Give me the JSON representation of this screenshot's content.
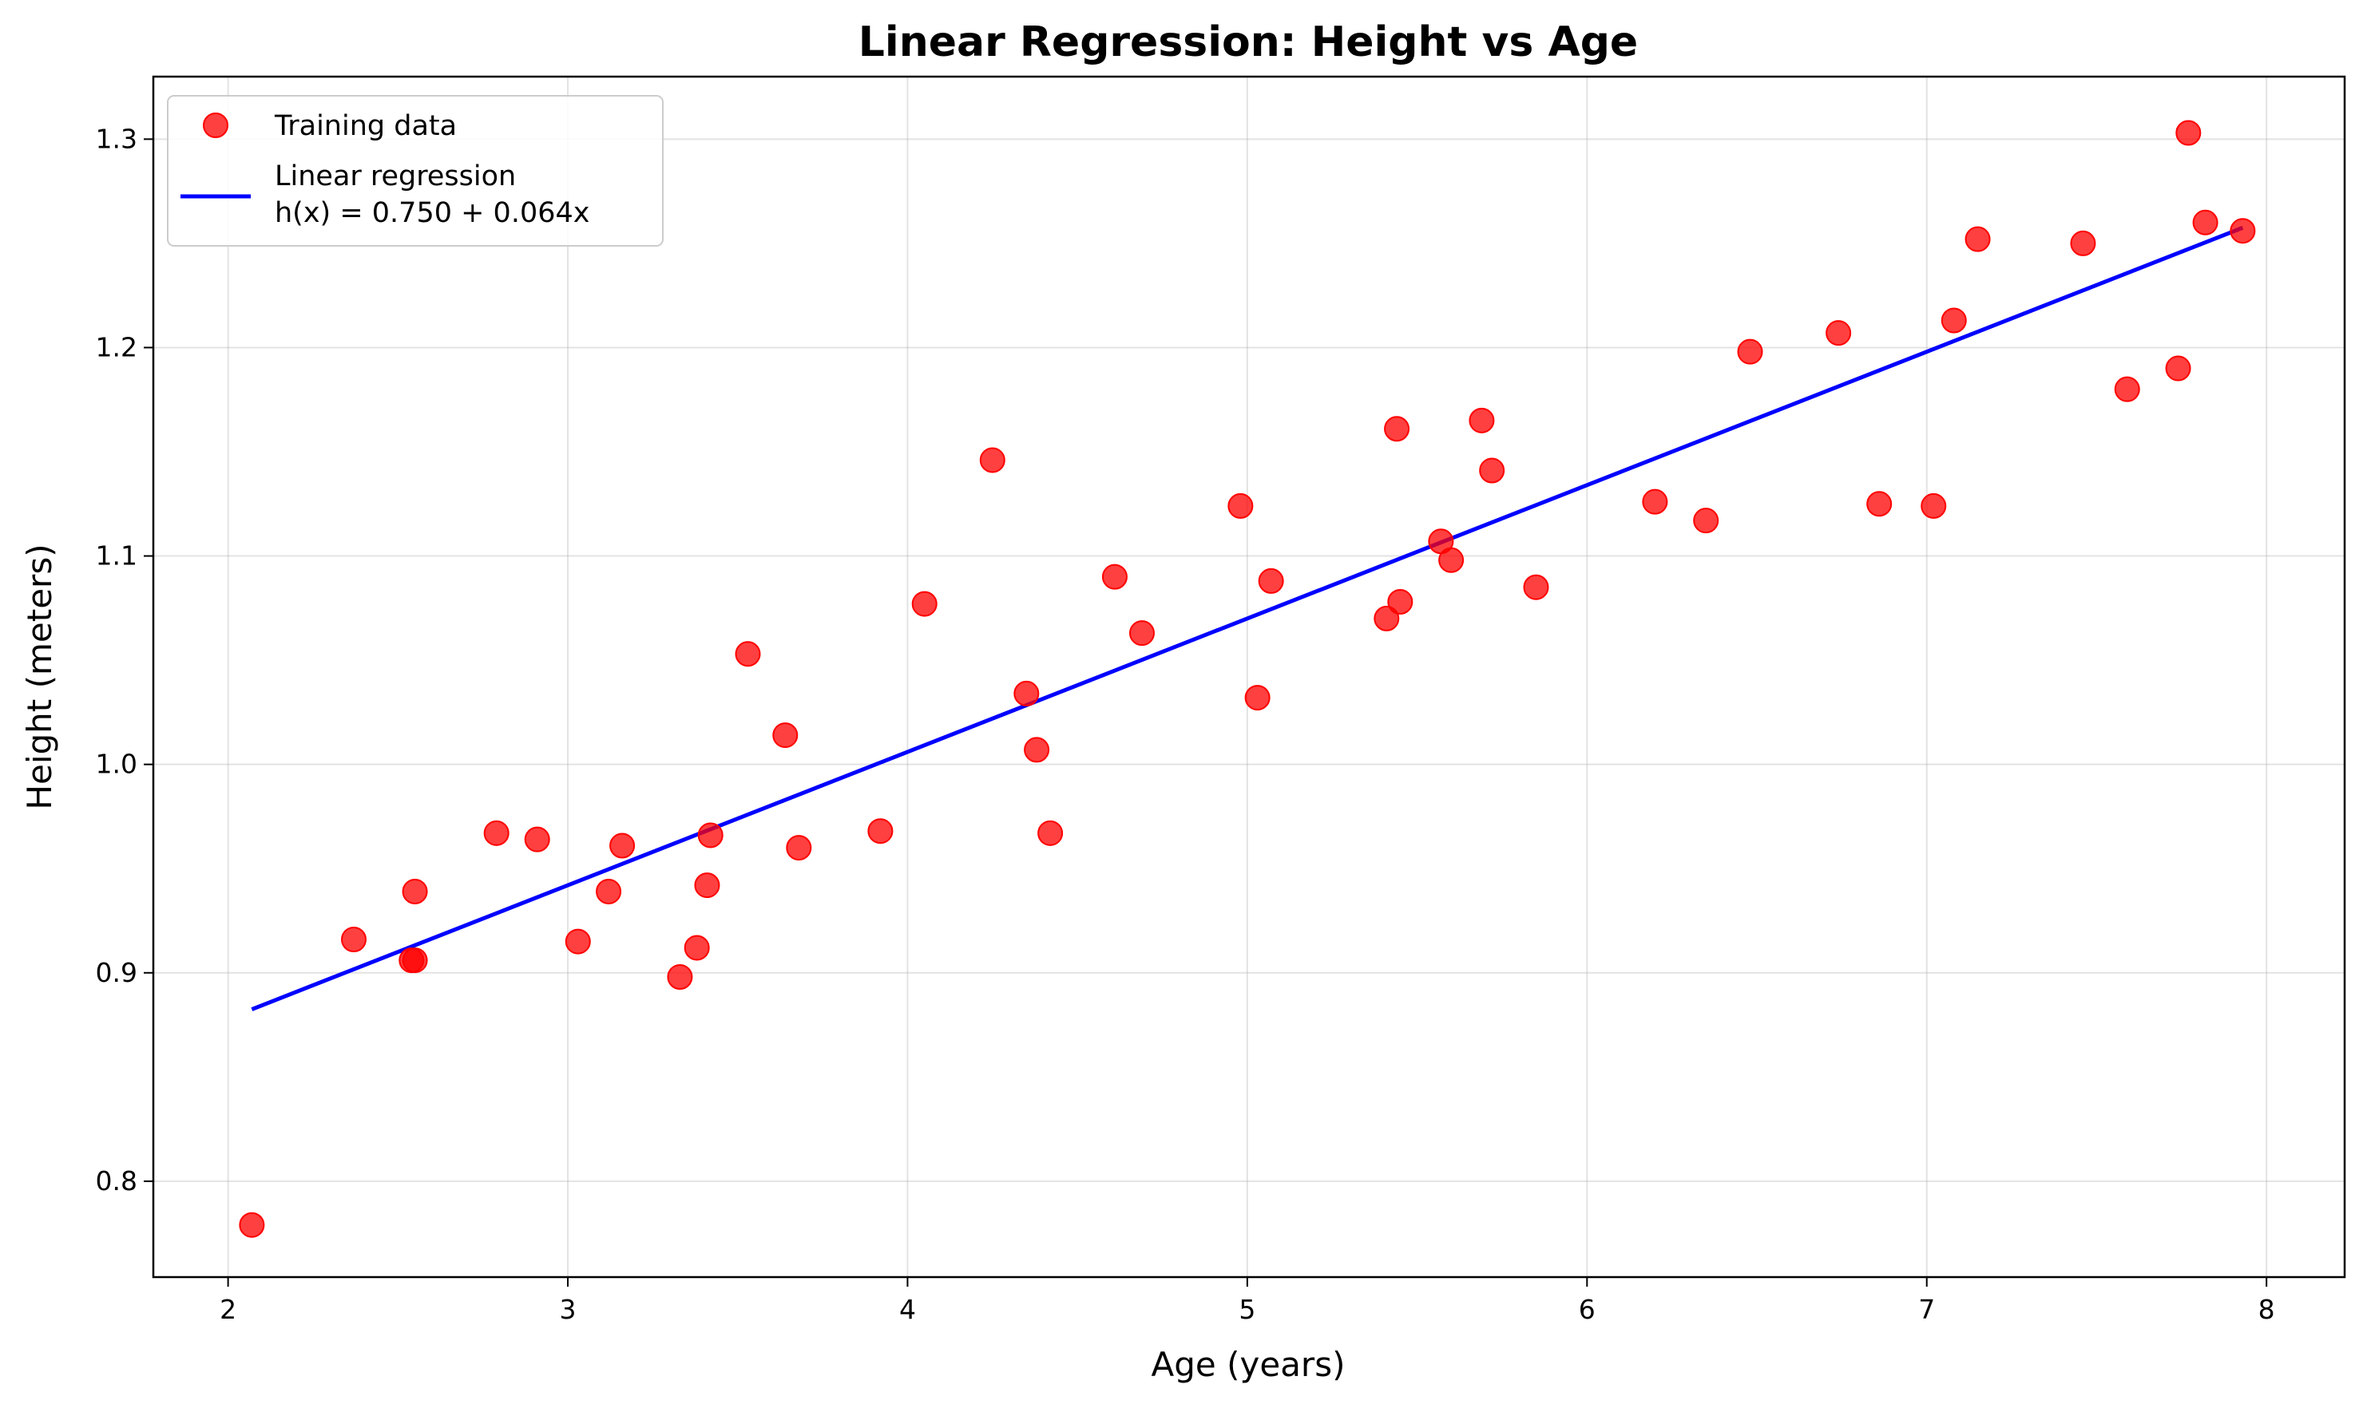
{
  "chart_data": {
    "type": "scatter",
    "title": "Linear Regression: Height vs Age",
    "xlabel": "Age (years)",
    "ylabel": "Height (meters)",
    "xlim": [
      1.78,
      8.23
    ],
    "ylim": [
      0.754,
      1.33
    ],
    "xticks": [
      2,
      3,
      4,
      5,
      6,
      7,
      8
    ],
    "yticks": [
      0.8,
      0.9,
      1.0,
      1.1,
      1.2,
      1.3
    ],
    "xtick_labels": [
      "2",
      "3",
      "4",
      "5",
      "6",
      "7",
      "8"
    ],
    "ytick_labels": [
      "0.8",
      "0.9",
      "1.0",
      "1.1",
      "1.2",
      "1.3"
    ],
    "grid": true,
    "legend_position": "top-left",
    "colors": {
      "points": "#ff0000",
      "line": "#0000ff"
    },
    "series": [
      {
        "name": "Training data",
        "kind": "scatter",
        "points": [
          [
            2.07,
            0.779
          ],
          [
            2.37,
            0.916
          ],
          [
            2.54,
            0.906
          ],
          [
            2.55,
            0.906
          ],
          [
            2.55,
            0.939
          ],
          [
            2.79,
            0.967
          ],
          [
            2.91,
            0.964
          ],
          [
            3.03,
            0.915
          ],
          [
            3.12,
            0.939
          ],
          [
            3.16,
            0.961
          ],
          [
            3.33,
            0.898
          ],
          [
            3.38,
            0.912
          ],
          [
            3.41,
            0.942
          ],
          [
            3.42,
            0.966
          ],
          [
            3.53,
            1.053
          ],
          [
            3.64,
            1.014
          ],
          [
            3.68,
            0.96
          ],
          [
            3.92,
            0.968
          ],
          [
            4.05,
            1.077
          ],
          [
            4.25,
            1.146
          ],
          [
            4.35,
            1.034
          ],
          [
            4.38,
            1.007
          ],
          [
            4.42,
            0.967
          ],
          [
            4.61,
            1.09
          ],
          [
            4.69,
            1.063
          ],
          [
            4.98,
            1.124
          ],
          [
            5.03,
            1.032
          ],
          [
            5.07,
            1.088
          ],
          [
            5.41,
            1.07
          ],
          [
            5.44,
            1.161
          ],
          [
            5.45,
            1.078
          ],
          [
            5.57,
            1.107
          ],
          [
            5.6,
            1.098
          ],
          [
            5.69,
            1.165
          ],
          [
            5.72,
            1.141
          ],
          [
            5.85,
            1.085
          ],
          [
            6.2,
            1.126
          ],
          [
            6.35,
            1.117
          ],
          [
            6.48,
            1.198
          ],
          [
            6.74,
            1.207
          ],
          [
            6.86,
            1.125
          ],
          [
            7.02,
            1.124
          ],
          [
            7.08,
            1.213
          ],
          [
            7.15,
            1.252
          ],
          [
            7.46,
            1.25
          ],
          [
            7.59,
            1.18
          ],
          [
            7.74,
            1.19
          ],
          [
            7.77,
            1.303
          ],
          [
            7.82,
            1.26
          ],
          [
            7.93,
            1.256
          ]
        ]
      },
      {
        "name": "Linear regression",
        "name_line2": "h(x) = 0.750 + 0.064x",
        "kind": "line",
        "intercept": 0.75,
        "slope": 0.064,
        "x_range": [
          2.07,
          7.93
        ]
      }
    ]
  }
}
